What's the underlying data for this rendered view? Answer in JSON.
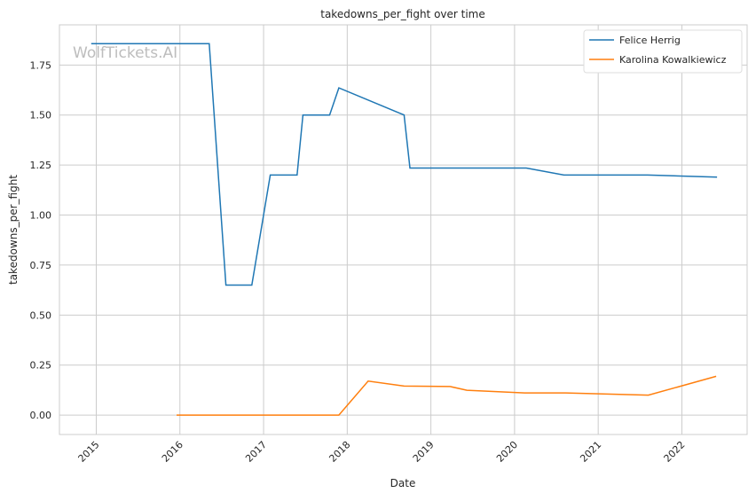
{
  "chart_data": {
    "type": "line",
    "title": "takedowns_per_fight over time",
    "xlabel": "Date",
    "ylabel": "takedowns_per_fight",
    "xlim": [
      2014.56,
      2022.78
    ],
    "ylim": [
      -0.097,
      1.951
    ],
    "x_ticks": [
      2015,
      2016,
      2017,
      2018,
      2019,
      2020,
      2021,
      2022
    ],
    "x_tick_labels": [
      "2015",
      "2016",
      "2017",
      "2018",
      "2019",
      "2020",
      "2021",
      "2022"
    ],
    "y_ticks": [
      0,
      0.25,
      0.5,
      0.75,
      1.0,
      1.25,
      1.5,
      1.75
    ],
    "y_tick_labels": [
      "0.00",
      "0.25",
      "0.50",
      "0.75",
      "1.00",
      "1.25",
      "1.50",
      "1.75"
    ],
    "grid": true,
    "legend_position": "top-right",
    "watermark": "WolfTickets.AI",
    "series": [
      {
        "name": "Felice Herrig",
        "color": "#1f77b4",
        "x": [
          2014.94,
          2016.35,
          2016.55,
          2016.86,
          2017.08,
          2017.4,
          2017.47,
          2017.79,
          2017.9,
          2018.68,
          2018.75,
          2020.14,
          2020.59,
          2021.59,
          2022.42
        ],
        "y": [
          1.857,
          1.857,
          0.65,
          0.65,
          1.2,
          1.2,
          1.5,
          1.5,
          1.636,
          1.5,
          1.235,
          1.235,
          1.2,
          1.2,
          1.19
        ]
      },
      {
        "name": "Karolina Kowalkiewicz",
        "color": "#ff7f0e",
        "x": [
          2015.96,
          2017.9,
          2018.25,
          2018.68,
          2019.23,
          2019.43,
          2020.12,
          2020.61,
          2021.6,
          2022.41
        ],
        "y": [
          0,
          0,
          0.17,
          0.145,
          0.143,
          0.124,
          0.111,
          0.111,
          0.1,
          0.194
        ]
      }
    ]
  }
}
